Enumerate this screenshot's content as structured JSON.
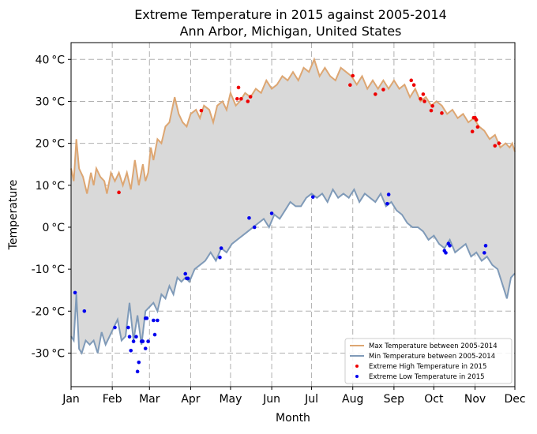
{
  "chart_data": {
    "type": "line",
    "title": "Extreme Temperature in 2015 against 2005-2014",
    "subtitle": "Ann Arbor, Michigan, United States",
    "xlabel": "Month",
    "ylabel": "Temperature",
    "x_tick_labels": [
      "Jan",
      "Feb",
      "Mar",
      "Apr",
      "May",
      "Jun",
      "Jul",
      "Aug",
      "Sep",
      "Oct",
      "Nov",
      "Dec"
    ],
    "x_tick_days": [
      1,
      32,
      60,
      91,
      121,
      152,
      182,
      213,
      244,
      274,
      305,
      335
    ],
    "xlim": [
      1,
      335
    ],
    "ylim": [
      -38,
      44
    ],
    "y_ticks": [
      -30,
      -20,
      -10,
      0,
      10,
      20,
      30,
      40
    ],
    "y_tick_labels": [
      "-30 °C",
      "-20 °C",
      "-10 °C",
      "0 °C",
      "10 °C",
      "20 °C",
      "30 °C",
      "40 °C"
    ],
    "grid": true,
    "legend_position": "lower-right",
    "fill_between_color": "#d9d9d9",
    "series": [
      {
        "name": "Max Temperature between 2005-2014",
        "color": "#dda672",
        "x": [
          1,
          3,
          5,
          7,
          10,
          13,
          16,
          18,
          20,
          23,
          26,
          28,
          31,
          34,
          37,
          40,
          43,
          46,
          49,
          52,
          55,
          57,
          59,
          61,
          63,
          66,
          69,
          72,
          75,
          79,
          82,
          85,
          88,
          91,
          95,
          98,
          101,
          105,
          108,
          111,
          115,
          118,
          121,
          125,
          128,
          132,
          136,
          140,
          144,
          148,
          152,
          156,
          160,
          164,
          168,
          172,
          176,
          180,
          184,
          188,
          192,
          196,
          200,
          204,
          208,
          212,
          216,
          220,
          224,
          228,
          232,
          236,
          240,
          244,
          248,
          252,
          256,
          260,
          264,
          268,
          272,
          276,
          280,
          284,
          288,
          292,
          296,
          300,
          304,
          308,
          312,
          316,
          320,
          324,
          328,
          331,
          333,
          335
        ],
        "values": [
          14,
          11,
          21,
          14,
          12,
          8,
          13,
          10,
          14,
          12,
          11,
          8,
          13,
          11,
          13,
          10,
          13,
          9,
          16,
          10,
          15,
          11,
          13,
          19,
          16,
          21,
          20,
          24,
          25,
          31,
          27,
          25,
          24,
          27,
          28,
          26,
          29,
          28,
          25,
          29,
          30,
          28,
          32,
          29,
          30,
          32,
          31,
          33,
          32,
          35,
          33,
          34,
          36,
          35,
          37,
          35,
          38,
          37,
          40,
          36,
          38,
          36,
          35,
          38,
          37,
          36,
          34,
          36,
          33,
          35,
          33,
          35,
          33,
          35,
          33,
          34,
          31,
          33,
          30,
          31,
          29,
          30,
          29,
          27,
          28,
          26,
          27,
          25,
          26,
          24,
          23,
          21,
          22,
          19,
          20,
          19,
          20,
          18
        ]
      },
      {
        "name": "Min Temperature between 2005-2014",
        "color": "#7f9ab8",
        "x": [
          1,
          3,
          5,
          7,
          9,
          12,
          15,
          18,
          21,
          24,
          27,
          30,
          33,
          36,
          39,
          42,
          45,
          48,
          51,
          54,
          57,
          60,
          63,
          66,
          69,
          72,
          75,
          78,
          81,
          84,
          87,
          90,
          94,
          98,
          102,
          106,
          110,
          114,
          118,
          122,
          126,
          130,
          134,
          138,
          142,
          146,
          150,
          154,
          158,
          162,
          166,
          170,
          174,
          178,
          182,
          186,
          190,
          194,
          198,
          202,
          206,
          210,
          214,
          218,
          222,
          226,
          230,
          234,
          238,
          242,
          246,
          250,
          254,
          258,
          262,
          266,
          270,
          274,
          278,
          282,
          286,
          290,
          294,
          298,
          302,
          306,
          310,
          314,
          318,
          322,
          326,
          329,
          332,
          335
        ],
        "values": [
          -26,
          -27,
          -16,
          -29,
          -30,
          -27,
          -28,
          -27,
          -30,
          -25,
          -28,
          -26,
          -24,
          -22,
          -27,
          -26,
          -18,
          -27,
          -21,
          -28,
          -20,
          -19,
          -18,
          -20,
          -16,
          -17,
          -14,
          -16,
          -12,
          -13,
          -12,
          -13,
          -10,
          -9,
          -8,
          -6,
          -8,
          -5,
          -6,
          -4,
          -3,
          -2,
          -1,
          0,
          1,
          2,
          0,
          3,
          2,
          4,
          6,
          5,
          5,
          7,
          8,
          7,
          8,
          6,
          9,
          7,
          8,
          7,
          9,
          6,
          8,
          7,
          6,
          8,
          5,
          6,
          4,
          3,
          1,
          0,
          0,
          -1,
          -3,
          -2,
          -4,
          -5,
          -3,
          -6,
          -5,
          -4,
          -7,
          -6,
          -8,
          -7,
          -9,
          -10,
          -14,
          -17,
          -12,
          -11
        ]
      },
      {
        "name": "Extreme High Temperature in 2015",
        "color": "#ee0000",
        "type": "scatter",
        "x": [
          37,
          99,
          126,
          127,
          129,
          134,
          136,
          211,
          213,
          230,
          236,
          257,
          259,
          264,
          266,
          267,
          272,
          273,
          280,
          303,
          304,
          305,
          306,
          307,
          320,
          323
        ],
        "values": [
          8.3,
          27.8,
          30.6,
          33.3,
          30.6,
          30.0,
          31.1,
          33.9,
          36.1,
          31.7,
          32.8,
          35.0,
          33.9,
          30.6,
          31.7,
          30.0,
          27.8,
          28.9,
          27.2,
          22.8,
          26.1,
          26.1,
          25.6,
          23.9,
          19.4,
          20.0
        ]
      },
      {
        "name": "Extreme Low Temperature in 2015",
        "color": "#0000ee",
        "type": "scatter",
        "x": [
          4,
          11,
          34,
          44,
          45,
          46,
          48,
          50,
          51,
          52,
          54,
          55,
          57,
          57,
          58,
          59,
          63,
          64,
          66,
          87,
          88,
          89,
          113,
          114,
          135,
          139,
          152,
          183,
          239,
          240,
          282,
          283,
          285,
          286,
          312,
          313
        ],
        "values": [
          -15.6,
          -20.0,
          -23.9,
          -23.9,
          -26.1,
          -29.4,
          -27.2,
          -26.1,
          -34.4,
          -32.2,
          -27.2,
          -27.2,
          -21.7,
          -28.9,
          -21.7,
          -27.2,
          -22.2,
          -25.6,
          -22.2,
          -11.1,
          -12.2,
          -12.2,
          -7.2,
          -5.0,
          2.2,
          0.0,
          3.3,
          7.2,
          5.6,
          7.8,
          -5.6,
          -6.1,
          -3.9,
          -4.4,
          -6.1,
          -4.4
        ]
      }
    ]
  }
}
